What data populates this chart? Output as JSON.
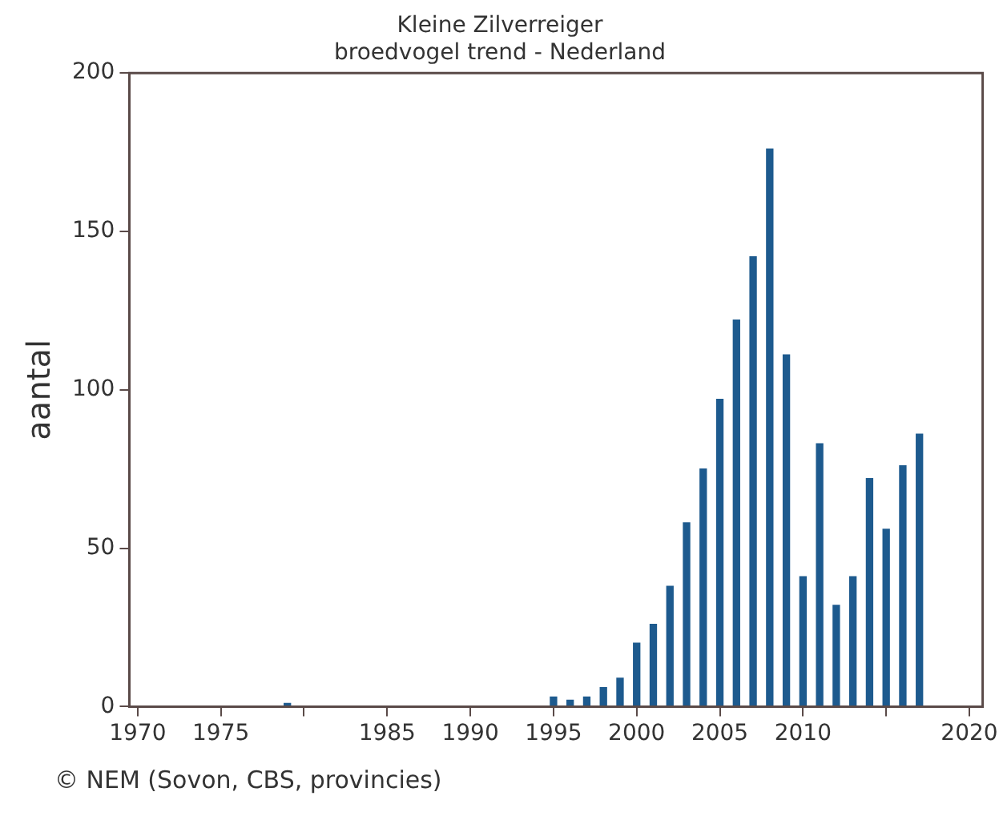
{
  "chart_data": {
    "type": "bar",
    "title": "Kleine Zilverreiger",
    "subtitle": "broedvogel trend - Nederland",
    "ylabel": "aantal",
    "x": [
      1979,
      1995,
      1996,
      1997,
      1998,
      1999,
      2000,
      2001,
      2002,
      2003,
      2004,
      2005,
      2006,
      2007,
      2008,
      2009,
      2010,
      2011,
      2012,
      2013,
      2014,
      2015,
      2016,
      2017
    ],
    "series": [
      {
        "color": "#1d5a8e",
        "values": [
          1,
          3,
          2,
          3,
          6,
          9,
          20,
          26,
          38,
          58,
          75,
          97,
          122,
          142,
          176,
          111,
          41,
          83,
          32,
          41,
          72,
          56,
          76,
          86
        ]
      }
    ],
    "xlim": [
      1969.5,
      2020.8
    ],
    "xticks": [
      1970,
      1975,
      {
        "value": 1980,
        "label": null
      },
      1985,
      1990,
      1995,
      2000,
      2005,
      2010,
      {
        "value": 2015,
        "label": null
      },
      2020
    ],
    "ylim": [
      0,
      200
    ],
    "yticks": [
      0,
      50,
      100,
      150,
      200
    ],
    "grid": false,
    "legend": false,
    "annotations": [
      "© NEM (Sovon, CBS, provincies)"
    ]
  }
}
